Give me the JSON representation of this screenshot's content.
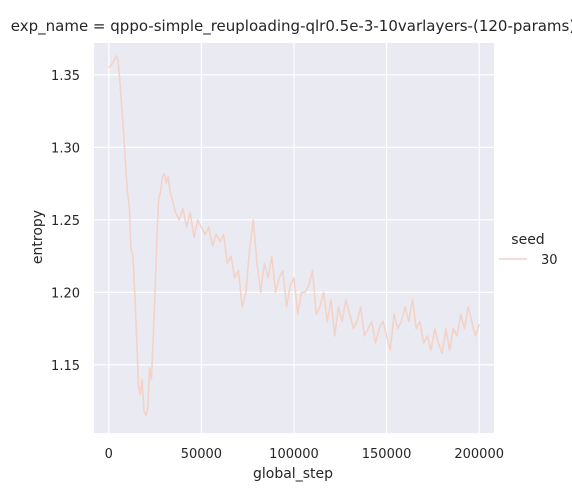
{
  "chart_data": {
    "type": "line",
    "title": "exp_name = qppo-simple_reuploading-qlr0.5e-3-10varlayers-(120-params)",
    "xlabel": "global_step",
    "ylabel": "entropy",
    "xlim": [
      -8000,
      208000
    ],
    "ylim": [
      1.103,
      1.372
    ],
    "x_ticks": [
      0,
      50000,
      100000,
      150000,
      200000
    ],
    "x_tick_labels": [
      "0",
      "50000",
      "100000",
      "150000",
      "200000"
    ],
    "y_ticks": [
      1.15,
      1.2,
      1.25,
      1.3,
      1.35
    ],
    "y_tick_labels": [
      "1.15",
      "1.20",
      "1.25",
      "1.30",
      "1.35"
    ],
    "grid": true,
    "legend": {
      "title": "seed",
      "placement": "right",
      "entries": [
        "30"
      ]
    },
    "colors": {
      "background": "#eaeaf2",
      "grid": "#ffffff",
      "line": "#f3d3c7"
    },
    "series": [
      {
        "name": "30",
        "x": [
          0,
          2000,
          4000,
          5000,
          6000,
          8000,
          10000,
          11000,
          12000,
          13000,
          14000,
          15000,
          16000,
          17000,
          18000,
          19000,
          20000,
          21000,
          22000,
          23000,
          24000,
          25000,
          26000,
          27000,
          28000,
          29000,
          30000,
          31000,
          32000,
          33000,
          34000,
          36000,
          38000,
          40000,
          42000,
          44000,
          46000,
          48000,
          50000,
          52000,
          54000,
          56000,
          58000,
          60000,
          62000,
          64000,
          66000,
          68000,
          70000,
          72000,
          74000,
          76000,
          78000,
          80000,
          82000,
          84000,
          86000,
          88000,
          90000,
          92000,
          94000,
          96000,
          98000,
          100000,
          102000,
          104000,
          106000,
          108000,
          110000,
          112000,
          114000,
          116000,
          118000,
          120000,
          122000,
          124000,
          126000,
          128000,
          130000,
          132000,
          134000,
          136000,
          138000,
          140000,
          142000,
          144000,
          146000,
          148000,
          150000,
          152000,
          154000,
          156000,
          158000,
          160000,
          162000,
          164000,
          166000,
          168000,
          170000,
          172000,
          174000,
          176000,
          178000,
          180000,
          182000,
          184000,
          186000,
          188000,
          190000,
          192000,
          194000,
          196000,
          198000,
          200000
        ],
        "values": [
          1.355,
          1.358,
          1.363,
          1.36,
          1.345,
          1.31,
          1.27,
          1.26,
          1.23,
          1.225,
          1.2,
          1.17,
          1.135,
          1.13,
          1.14,
          1.118,
          1.115,
          1.12,
          1.148,
          1.14,
          1.17,
          1.2,
          1.24,
          1.265,
          1.27,
          1.28,
          1.282,
          1.275,
          1.28,
          1.27,
          1.265,
          1.255,
          1.25,
          1.258,
          1.245,
          1.255,
          1.238,
          1.25,
          1.245,
          1.24,
          1.245,
          1.232,
          1.24,
          1.235,
          1.24,
          1.22,
          1.225,
          1.21,
          1.215,
          1.19,
          1.2,
          1.23,
          1.25,
          1.22,
          1.2,
          1.22,
          1.21,
          1.225,
          1.2,
          1.21,
          1.215,
          1.19,
          1.205,
          1.21,
          1.185,
          1.2,
          1.2,
          1.205,
          1.215,
          1.185,
          1.19,
          1.2,
          1.18,
          1.195,
          1.17,
          1.19,
          1.18,
          1.195,
          1.185,
          1.175,
          1.18,
          1.19,
          1.17,
          1.175,
          1.18,
          1.165,
          1.175,
          1.18,
          1.17,
          1.16,
          1.185,
          1.175,
          1.18,
          1.19,
          1.18,
          1.195,
          1.175,
          1.18,
          1.165,
          1.17,
          1.16,
          1.175,
          1.165,
          1.158,
          1.175,
          1.16,
          1.175,
          1.17,
          1.185,
          1.175,
          1.19,
          1.18,
          1.17,
          1.178
        ]
      }
    ]
  }
}
